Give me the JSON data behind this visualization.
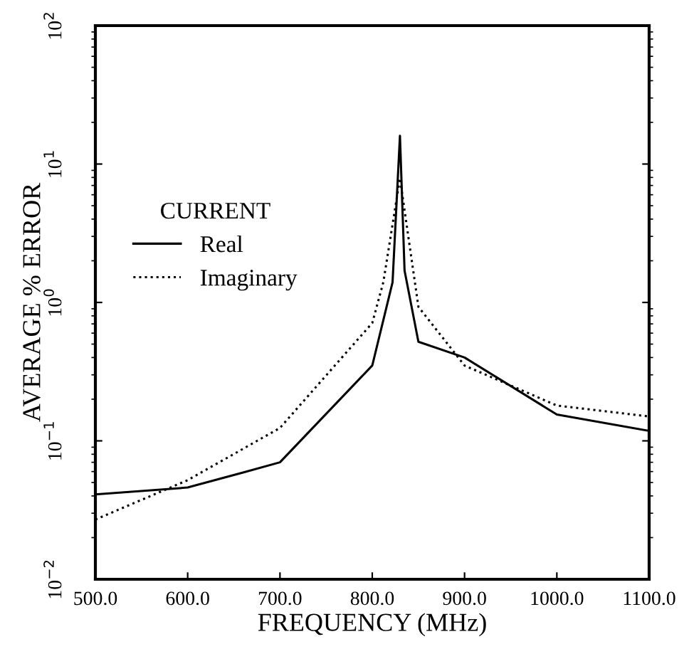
{
  "chart_data": {
    "type": "line",
    "xlabel": "FREQUENCY (MHz)",
    "ylabel": "AVERAGE % ERROR",
    "legend_title": "CURRENT",
    "series": [
      {
        "name": "Real",
        "color": "#000000",
        "line_style": "solid",
        "x": [
          500,
          600,
          660,
          700,
          800,
          822,
          830,
          835,
          850,
          900,
          1000,
          1100
        ],
        "values": [
          0.041,
          0.046,
          0.059,
          0.07,
          0.35,
          1.4,
          16,
          1.7,
          0.52,
          0.4,
          0.155,
          0.118
        ]
      },
      {
        "name": "Imaginary",
        "color": "#000000",
        "line_style": "dotted",
        "x": [
          500,
          600,
          700,
          800,
          812,
          830,
          850,
          900,
          1000,
          1100
        ],
        "values": [
          0.027,
          0.052,
          0.124,
          0.71,
          1.4,
          7.9,
          0.93,
          0.35,
          0.18,
          0.15
        ]
      }
    ],
    "log": "y",
    "xlim": [
      500,
      1100
    ],
    "ylim": [
      0.01,
      100
    ],
    "xticks": [
      {
        "value": 500,
        "label": "500.0"
      },
      {
        "value": 600,
        "label": "600.0"
      },
      {
        "value": 700,
        "label": "700.0"
      },
      {
        "value": 800,
        "label": "800.0"
      },
      {
        "value": 900,
        "label": "900.0"
      },
      {
        "value": 1000,
        "label": "1000.0"
      },
      {
        "value": 1100,
        "label": "1100.0"
      }
    ],
    "yticks": [
      {
        "value": 0.01,
        "label": "10$^{−2}$"
      },
      {
        "value": 0.1,
        "label": "10$^{−1}$"
      },
      {
        "value": 1,
        "label": "10$^{0}$"
      },
      {
        "value": 10,
        "label": "10$^{1}$"
      },
      {
        "value": 100,
        "label": "10$^{2}$"
      }
    ],
    "grid": false,
    "legend": "top left",
    "marker": "none"
  }
}
